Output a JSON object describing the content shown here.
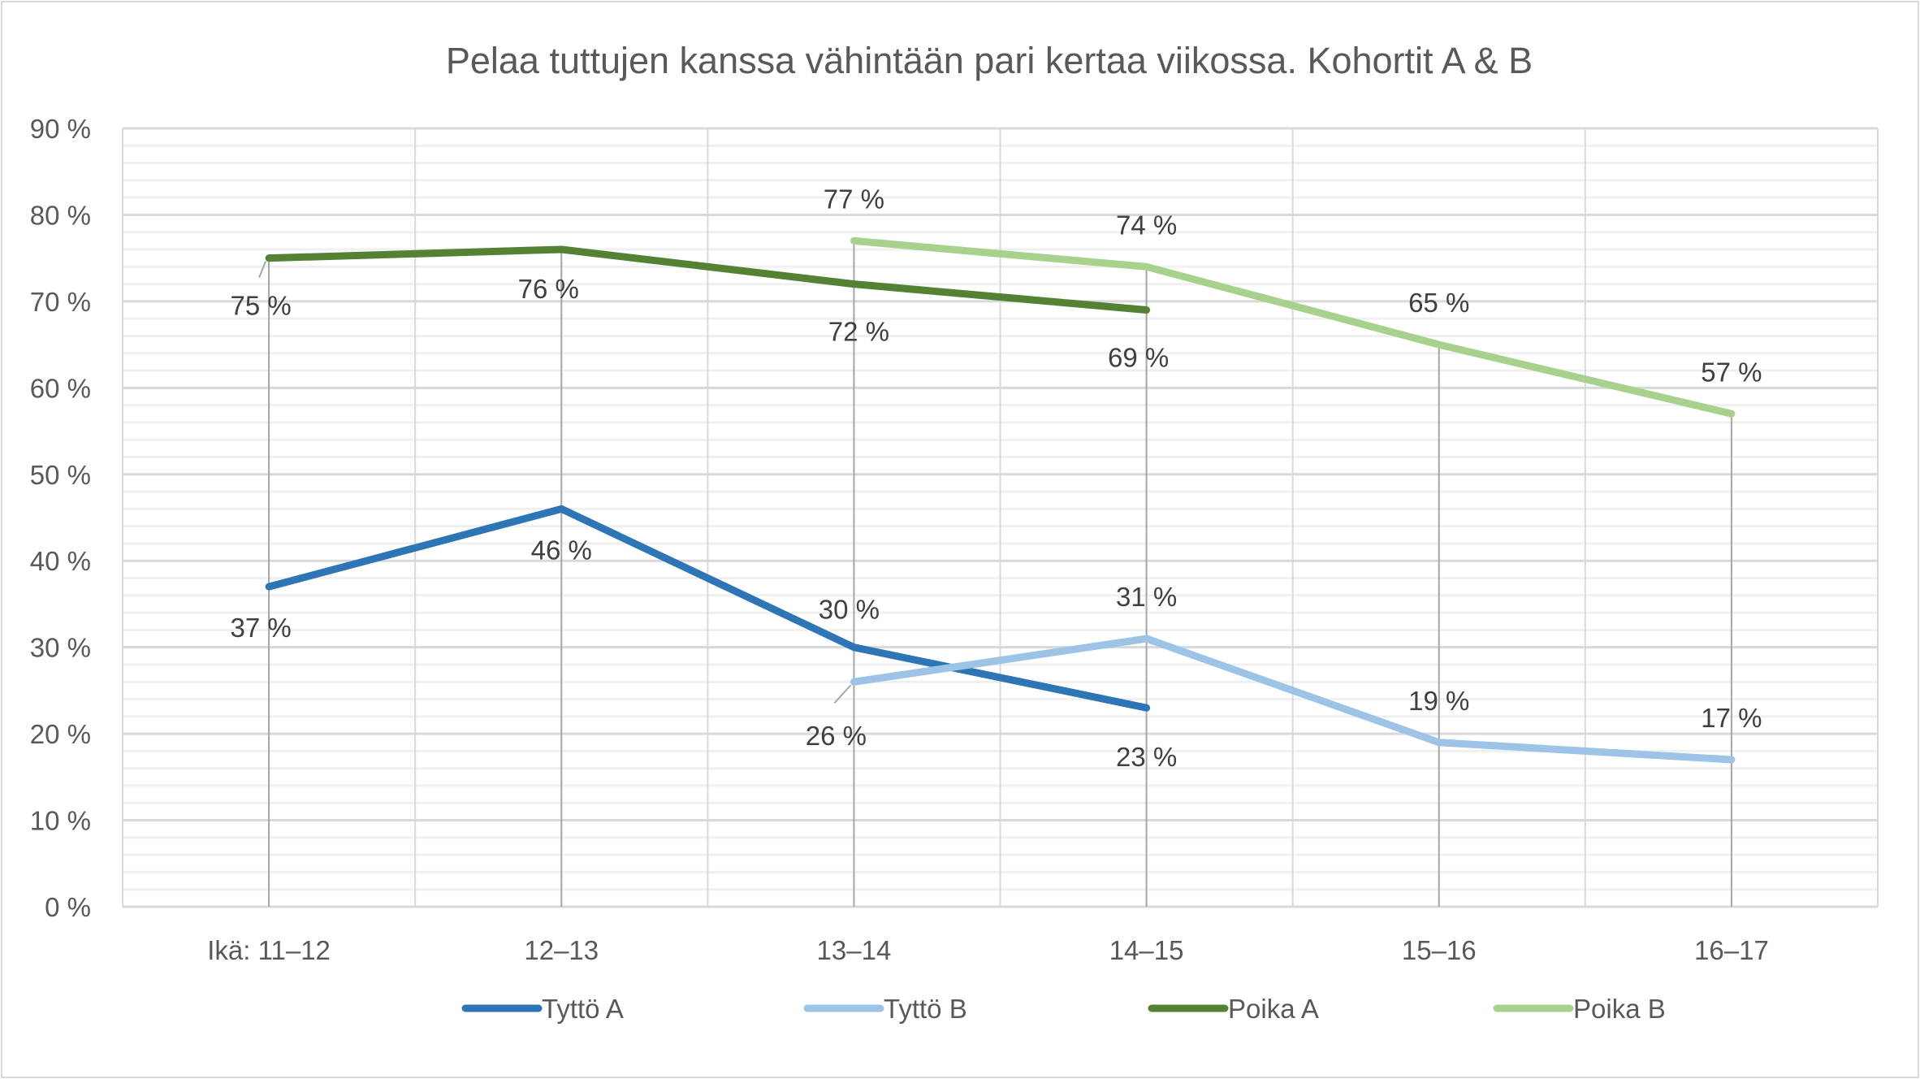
{
  "chart_data": {
    "type": "line",
    "title": "Pelaa tuttujen kanssa vähintään pari kertaa viikossa. Kohortit A & B",
    "categories": [
      "Ikä: 11–12",
      "12–13",
      "13–14",
      "14–15",
      "15–16",
      "16–17"
    ],
    "ylim": [
      0,
      90
    ],
    "yticks": [
      "0 %",
      "10 %",
      "20 %",
      "30 %",
      "40 %",
      "50 %",
      "60 %",
      "70 %",
      "80 %",
      "90 %"
    ],
    "ytick_values": [
      0,
      10,
      20,
      30,
      40,
      50,
      60,
      70,
      80,
      90
    ],
    "grid": true,
    "minor_grid_step": 2,
    "drop_lines": true,
    "legend_position": "bottom",
    "series": [
      {
        "name": "Tyttö A",
        "color": "#2E75B6",
        "values": [
          37,
          46,
          30,
          23,
          null,
          null
        ],
        "labels": [
          "37 %",
          "46 %",
          "30 %",
          "23 %",
          null,
          null
        ]
      },
      {
        "name": "Tyttö B",
        "color": "#9DC3E6",
        "values": [
          null,
          null,
          26,
          31,
          19,
          17
        ],
        "labels": [
          null,
          null,
          "26 %",
          "31 %",
          "19 %",
          "17 %"
        ]
      },
      {
        "name": "Poika A",
        "color": "#548235",
        "values": [
          75,
          76,
          72,
          69,
          null,
          null
        ],
        "labels": [
          "75 %",
          "76 %",
          "72 %",
          "69 %",
          null,
          null
        ]
      },
      {
        "name": "Poika B",
        "color": "#A9D18E",
        "values": [
          null,
          null,
          77,
          74,
          65,
          57
        ],
        "labels": [
          null,
          null,
          "77 %",
          "74 %",
          "65 %",
          "57 %"
        ]
      }
    ]
  }
}
